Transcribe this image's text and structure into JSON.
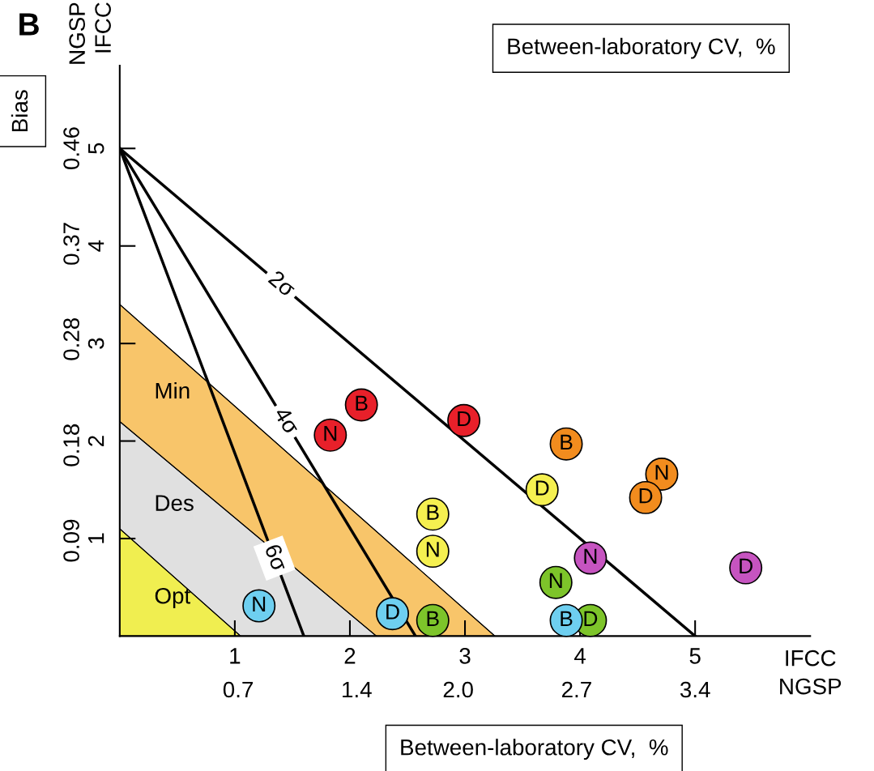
{
  "chart_data": {
    "type": "scatter",
    "title": "Between-laboratory CV,  %",
    "xlabel": "Between-laboratory CV,  %",
    "y2label": "Bias",
    "annotations": [
      "B",
      "NGSP\nIFCC",
      "IFCC\nNGSP"
    ],
    "xlim": [
      0,
      6
    ],
    "ylim": [
      0,
      5.85
    ],
    "xticks": [
      1,
      2,
      3,
      4,
      5
    ],
    "yticks": [
      1,
      2,
      3,
      4,
      5
    ],
    "x2lim": [
      0,
      4.08
    ],
    "x2ticks": [
      0.7,
      1.4,
      {
        "value": 2.0,
        "label": "2.0"
      },
      2.7,
      3.4
    ],
    "y2lim": [
      0,
      0.538
    ],
    "y2ticks": [
      0.09,
      0.18,
      0.28,
      0.37,
      0.46
    ],
    "grid": false,
    "series": [
      {
        "type": "area",
        "name": "Min",
        "color": "#f8c56a",
        "x": [
          0,
          3.26
        ],
        "values": [
          3.4,
          0
        ]
      },
      {
        "type": "area",
        "name": "Des",
        "color": "#e0e0e0",
        "x": [
          0,
          2.23
        ],
        "values": [
          2.2,
          0
        ]
      },
      {
        "type": "area",
        "name": "Opt",
        "color": "#f0ee50",
        "x": [
          0,
          1.05
        ],
        "values": [
          1.1,
          0
        ]
      },
      {
        "type": "line",
        "name": "2σ",
        "color": "#000000",
        "x": [
          0,
          5
        ],
        "values": [
          5,
          0
        ]
      },
      {
        "type": "line",
        "name": "4σ",
        "color": "#000000",
        "x": [
          0,
          2.57
        ],
        "values": [
          5,
          0
        ]
      },
      {
        "type": "line",
        "name": "6σ",
        "color": "#000000",
        "x": [
          0,
          1.6
        ],
        "values": [
          5,
          0
        ]
      },
      {
        "marker": "circle",
        "color": "#e8202a",
        "x": [
          1.83,
          2.1,
          2.99
        ],
        "values": [
          2.06,
          2.37,
          2.21
        ],
        "value_labels": [
          "N",
          "B",
          "D"
        ]
      },
      {
        "marker": "circle",
        "color": "#f28c1e",
        "x": [
          3.88,
          4.71,
          4.57
        ],
        "values": [
          1.97,
          1.66,
          1.42
        ],
        "value_labels": [
          "B",
          "N",
          "D"
        ]
      },
      {
        "marker": "circle",
        "color": "#f5f050",
        "x": [
          3.67,
          2.72,
          2.72
        ],
        "values": [
          1.5,
          1.25,
          0.87
        ],
        "value_labels": [
          "D",
          "B",
          "N"
        ]
      },
      {
        "marker": "circle",
        "color": "#7dc42a",
        "x": [
          3.79,
          2.72,
          4.09
        ],
        "values": [
          0.55,
          0.16,
          0.16
        ],
        "value_labels": [
          "N",
          "B",
          "D"
        ]
      },
      {
        "marker": "circle",
        "color": "#6ecff0",
        "x": [
          1.21,
          2.37,
          3.88
        ],
        "values": [
          0.31,
          0.23,
          0.16
        ],
        "value_labels": [
          "N",
          "D",
          "B"
        ]
      },
      {
        "marker": "circle",
        "color": "#c654c0",
        "x": [
          4.09,
          5.44
        ],
        "values": [
          0.8,
          0.7
        ],
        "value_labels": [
          "N",
          "D"
        ]
      }
    ]
  }
}
